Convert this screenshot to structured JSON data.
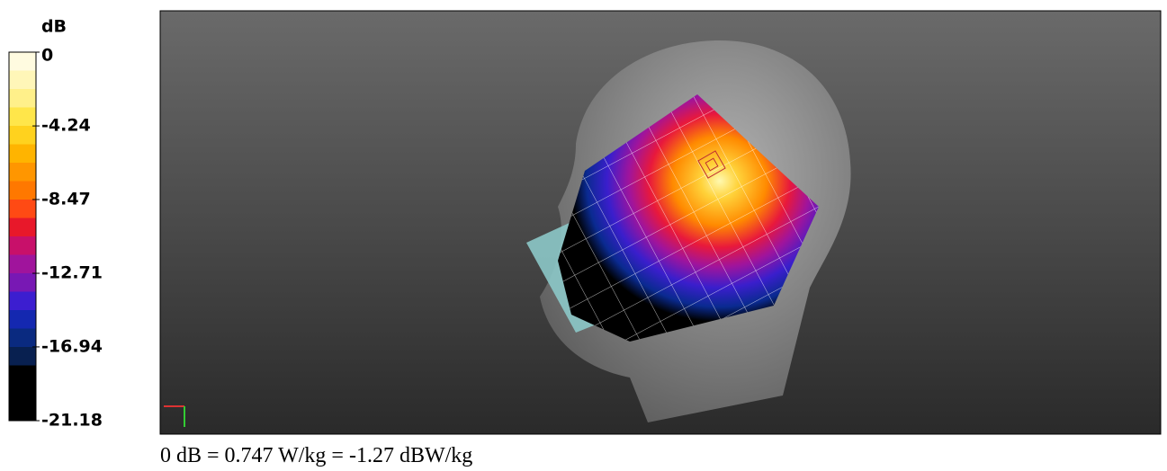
{
  "colorbar": {
    "title": "dB",
    "ticks": [
      0,
      -4.24,
      -8.47,
      -12.71,
      -16.94,
      -21.18
    ]
  },
  "caption": "0 dB = 0.747 W/kg = -1.27 dBW/kg"
}
